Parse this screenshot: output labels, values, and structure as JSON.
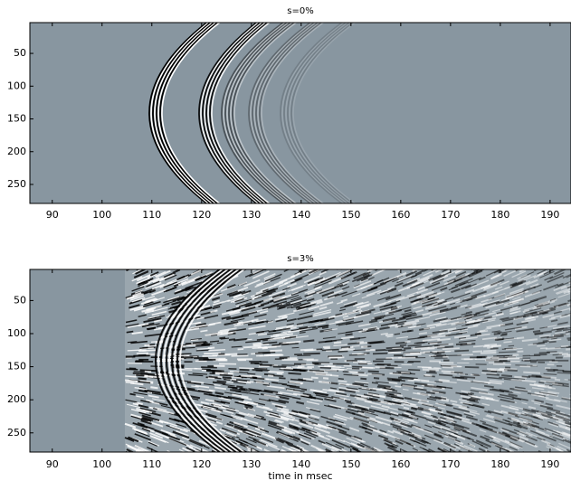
{
  "chart_data": [
    {
      "type": "image",
      "title": "s=0%",
      "xlim": [
        85.5,
        194.2
      ],
      "xticks": [
        90,
        100,
        110,
        120,
        130,
        140,
        150,
        160,
        170,
        180,
        190
      ],
      "ylim": [
        3,
        279
      ],
      "yticks": [
        50,
        100,
        150,
        200,
        250
      ],
      "background": "#8896a0"
    },
    {
      "type": "image",
      "title": "s=3%",
      "x_label": "time in msec",
      "xlim": [
        85.5,
        194.2
      ],
      "xticks": [
        90,
        100,
        110,
        120,
        130,
        140,
        150,
        160,
        170,
        180,
        190
      ],
      "ylim": [
        3,
        279
      ],
      "yticks": [
        50,
        100,
        150,
        200,
        250
      ],
      "background": "#8896a0"
    }
  ]
}
